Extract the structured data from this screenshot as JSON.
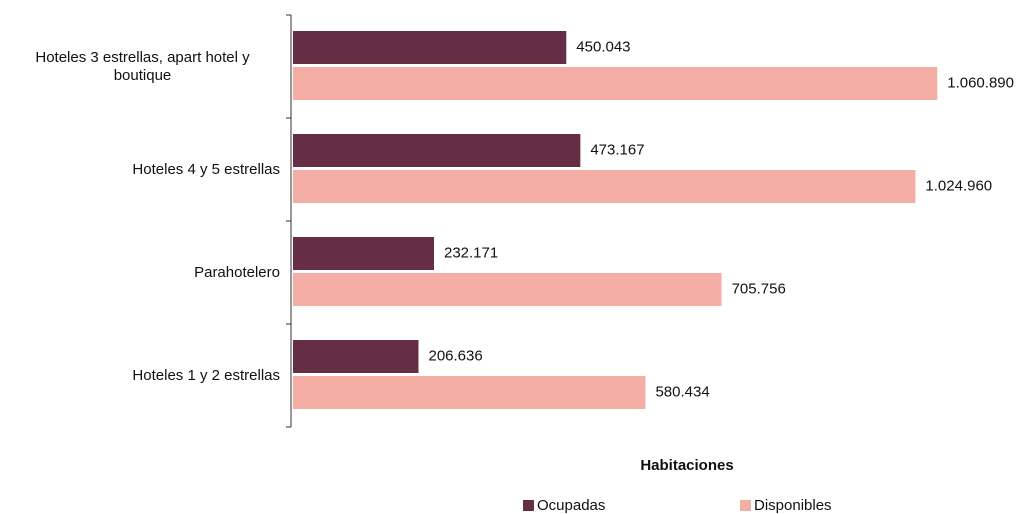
{
  "chart_data": {
    "type": "bar",
    "orientation": "horizontal",
    "categories": [
      "Hoteles 3 estrellas, apart hotel y boutique",
      "Hoteles 4 y 5 estrellas",
      "Parahotelero",
      "Hoteles 1 y 2 estrellas"
    ],
    "series": [
      {
        "name": "Ocupadas",
        "color": "#652e45",
        "values": [
          450043,
          473167,
          232171,
          206636
        ],
        "value_labels": [
          "450.043",
          "473.167",
          "232.171",
          "206.636"
        ]
      },
      {
        "name": "Disponibles",
        "color": "#f4aea5",
        "values": [
          1060890,
          1024960,
          705756,
          580434
        ],
        "value_labels": [
          "1.060.890",
          "1.024.960",
          "705.756",
          "580.434"
        ]
      }
    ],
    "legend_title": "Habitaciones",
    "legend_position": "bottom",
    "xlim": [
      0,
      1100000
    ]
  }
}
